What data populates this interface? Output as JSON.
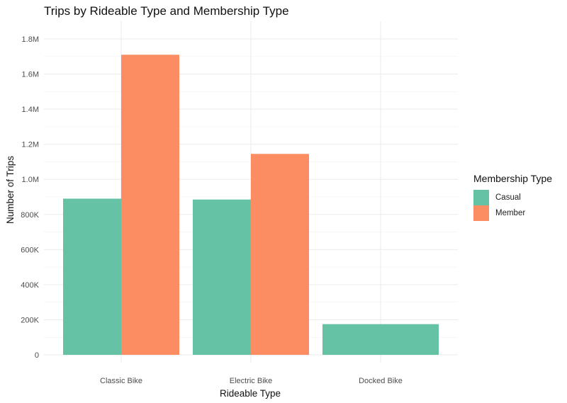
{
  "chart_data": {
    "type": "bar",
    "title": "Trips by Rideable Type and Membership Type",
    "xlabel": "Rideable Type",
    "ylabel": "Number of Trips",
    "categories": [
      "Classic Bike",
      "Electric Bike",
      "Docked Bike"
    ],
    "series": [
      {
        "name": "Casual",
        "color": "#66c2a5",
        "values": [
          890000,
          885000,
          175000
        ]
      },
      {
        "name": "Member",
        "color": "#fc8d62",
        "values": [
          1710000,
          1145000,
          null
        ]
      }
    ],
    "ylim": [
      0,
      1800000
    ],
    "yticks": [
      0,
      200000,
      400000,
      600000,
      800000,
      1000000,
      1200000,
      1400000,
      1600000,
      1800000
    ],
    "ytick_labels": [
      "0",
      "200K",
      "400K",
      "600K",
      "800K",
      "1.0M",
      "1.2M",
      "1.4M",
      "1.6M",
      "1.8M"
    ],
    "legend": {
      "title": "Membership Type",
      "position": "right"
    },
    "grid": true,
    "theme": "minimal"
  }
}
